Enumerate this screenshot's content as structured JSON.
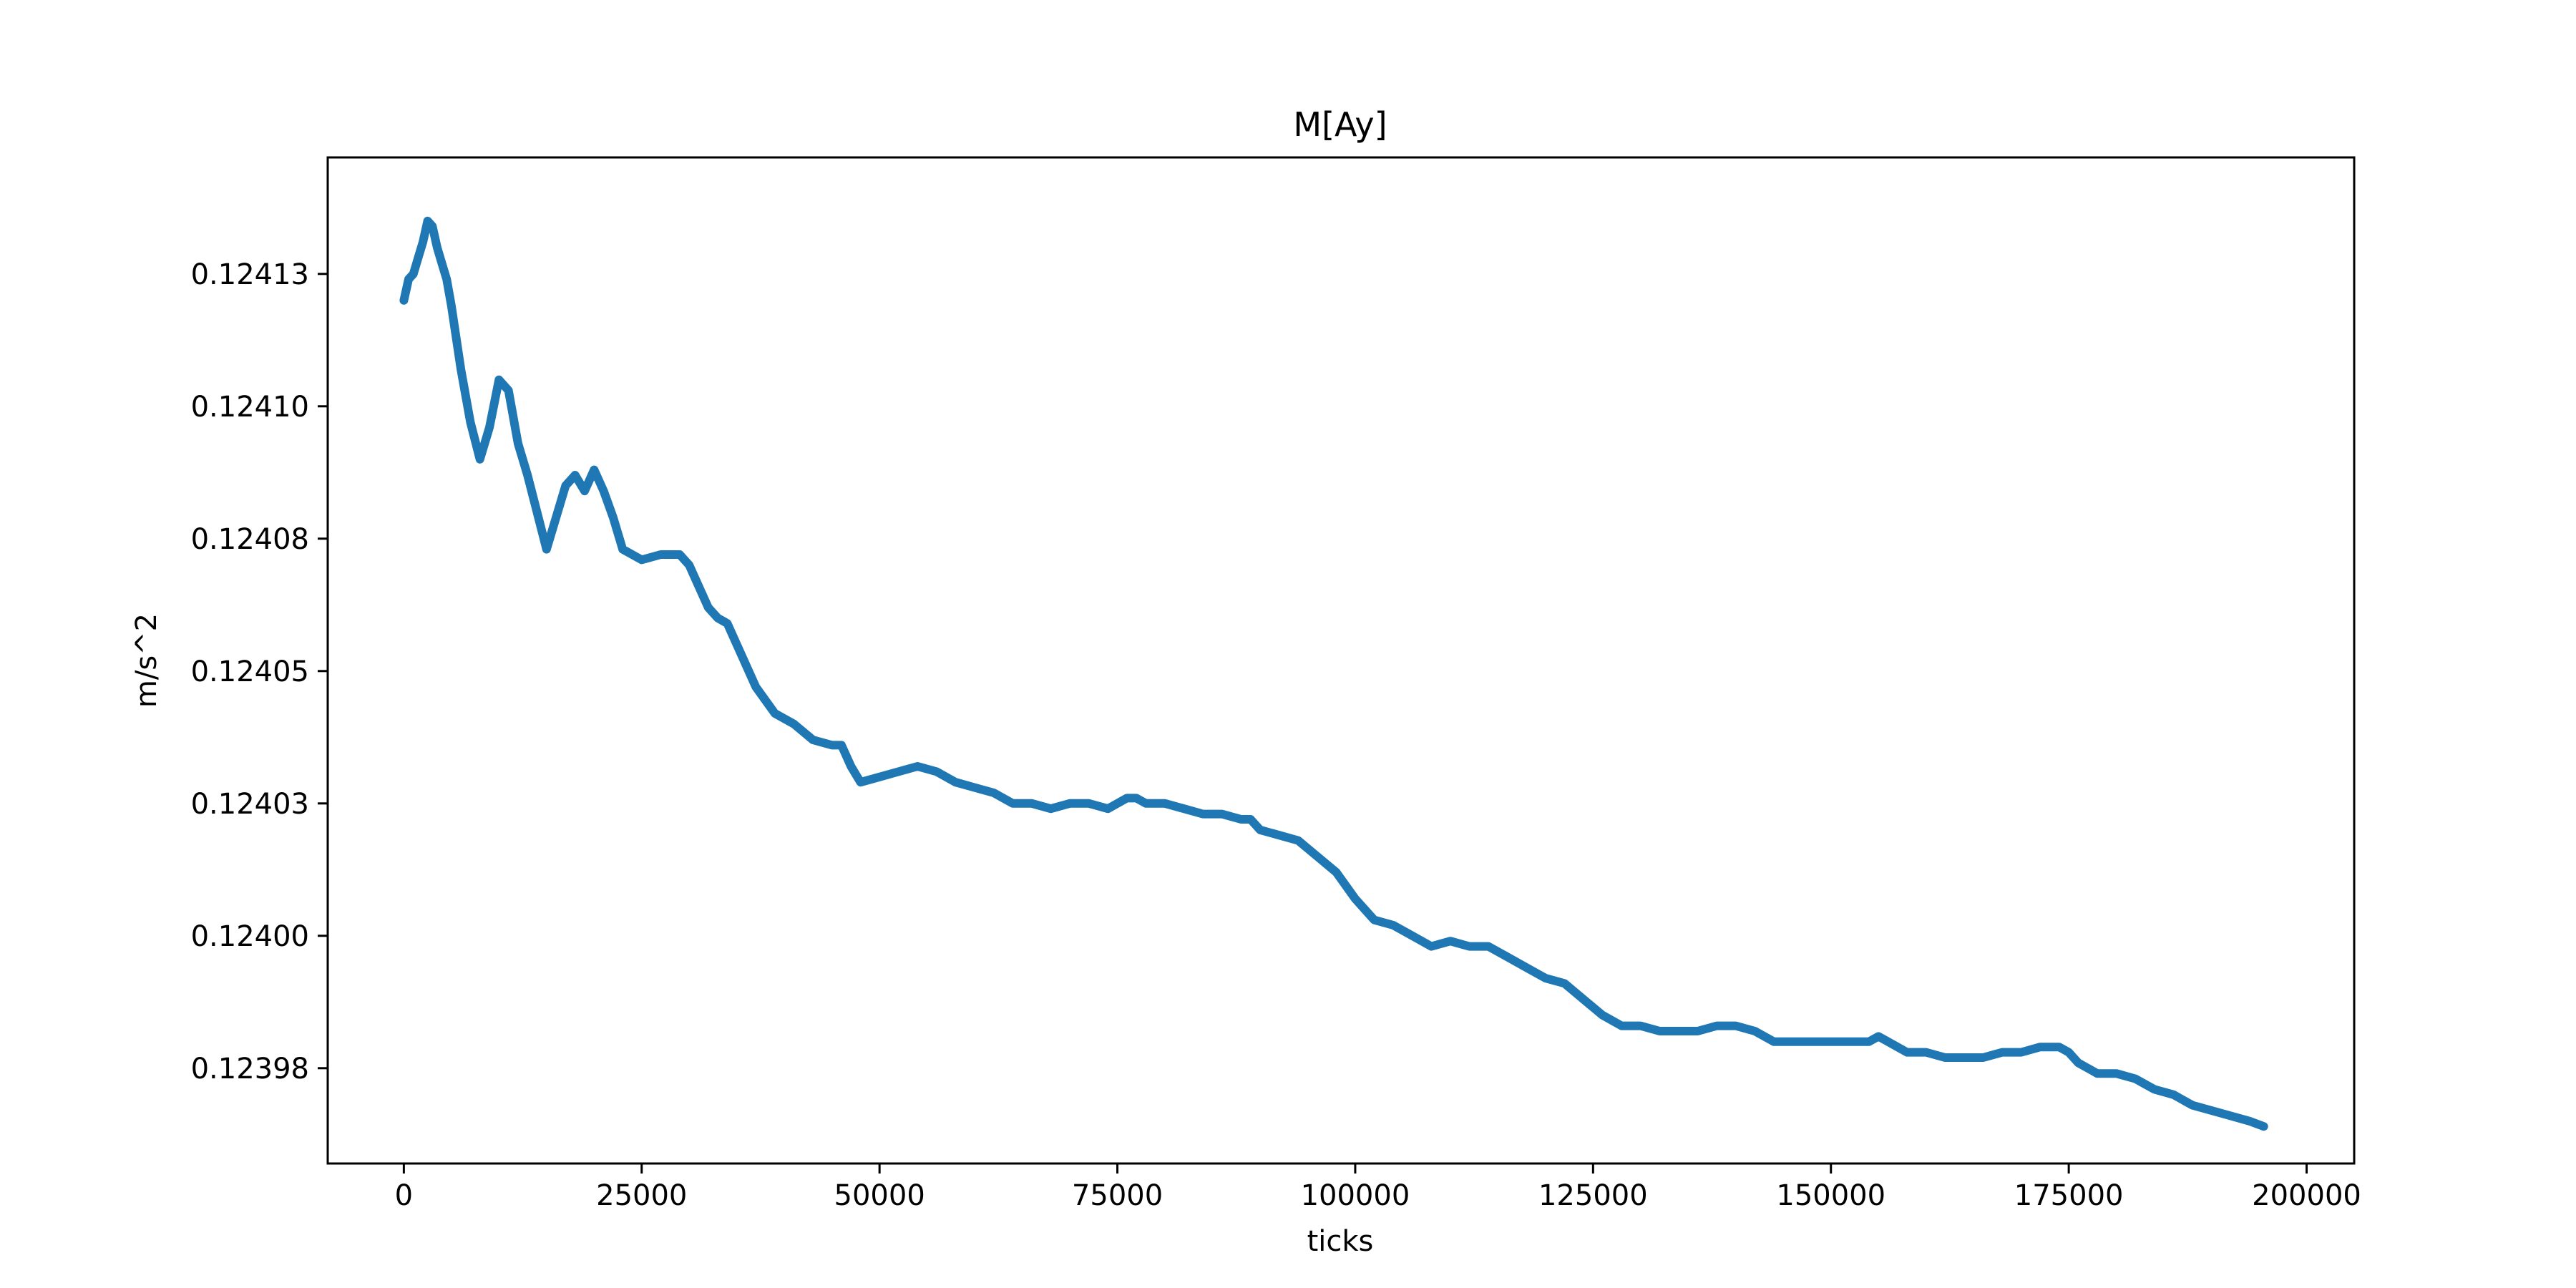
{
  "chart_data": {
    "type": "line",
    "title": "M[Ay]",
    "xlabel": "ticks",
    "ylabel": "m/s^2",
    "xlim": [
      -8000,
      205000
    ],
    "ylim": [
      0.123962,
      0.124152
    ],
    "x_ticks": [
      0,
      25000,
      50000,
      75000,
      100000,
      125000,
      150000,
      175000,
      200000
    ],
    "x_tick_labels": [
      "0",
      "25000",
      "50000",
      "75000",
      "100000",
      "125000",
      "150000",
      "175000",
      "200000"
    ],
    "y_ticks": [
      0.12398,
      0.124005,
      0.12403,
      0.124055,
      0.12408,
      0.124105,
      0.12413
    ],
    "y_tick_labels": [
      "0.12398",
      "0.12400",
      "0.12403",
      "0.12405",
      "0.12408",
      "0.12410",
      "0.12413"
    ],
    "grid": false,
    "line_color": "#1f77b4",
    "series": [
      {
        "x": [
          0,
          500,
          1000,
          1500,
          2000,
          2500,
          3000,
          3500,
          4000,
          4500,
          5000,
          6000,
          7000,
          8000,
          9000,
          10000,
          11000,
          12000,
          13000,
          14000,
          15000,
          16000,
          17000,
          18000,
          19000,
          20000,
          21000,
          22000,
          23000,
          24000,
          25000,
          27000,
          29000,
          30000,
          31000,
          32000,
          33000,
          34000,
          35000,
          37000,
          39000,
          41000,
          43000,
          45000,
          46000,
          47000,
          48000,
          50000,
          52000,
          54000,
          56000,
          58000,
          60000,
          62000,
          64000,
          66000,
          68000,
          70000,
          72000,
          74000,
          76000,
          77000,
          78000,
          80000,
          82000,
          84000,
          86000,
          88000,
          89000,
          90000,
          92000,
          94000,
          96000,
          98000,
          100000,
          102000,
          104000,
          106000,
          108000,
          110000,
          112000,
          114000,
          116000,
          118000,
          120000,
          122000,
          124000,
          126000,
          128000,
          130000,
          132000,
          134000,
          136000,
          138000,
          140000,
          142000,
          144000,
          146000,
          148000,
          150000,
          152000,
          154000,
          155000,
          156000,
          158000,
          160000,
          162000,
          164000,
          166000,
          168000,
          170000,
          172000,
          174000,
          175000,
          176000,
          178000,
          180000,
          182000,
          184000,
          186000,
          188000,
          190000,
          192000,
          194000,
          195500
        ],
        "y": [
          0.124125,
          0.124129,
          0.12413,
          0.124133,
          0.124136,
          0.12414,
          0.124139,
          0.124135,
          0.124132,
          0.124129,
          0.124124,
          0.124112,
          0.124102,
          0.124095,
          0.124101,
          0.12411,
          0.124108,
          0.124098,
          0.124092,
          0.124085,
          0.124078,
          0.124084,
          0.12409,
          0.124092,
          0.124089,
          0.124093,
          0.124089,
          0.124084,
          0.124078,
          0.124077,
          0.124076,
          0.124077,
          0.124077,
          0.124075,
          0.124071,
          0.124067,
          0.124065,
          0.124064,
          0.12406,
          0.124052,
          0.124047,
          0.124045,
          0.124042,
          0.124041,
          0.124041,
          0.124037,
          0.124034,
          0.124035,
          0.124036,
          0.124037,
          0.124036,
          0.124034,
          0.124033,
          0.124032,
          0.12403,
          0.12403,
          0.124029,
          0.12403,
          0.12403,
          0.124029,
          0.124031,
          0.124031,
          0.12403,
          0.12403,
          0.124029,
          0.124028,
          0.124028,
          0.124027,
          0.124027,
          0.124025,
          0.124024,
          0.124023,
          0.12402,
          0.124017,
          0.124012,
          0.124008,
          0.124007,
          0.124005,
          0.124003,
          0.124004,
          0.124003,
          0.124003,
          0.124001,
          0.123999,
          0.123997,
          0.123996,
          0.123993,
          0.12399,
          0.123988,
          0.123988,
          0.123987,
          0.123987,
          0.123987,
          0.123988,
          0.123988,
          0.123987,
          0.123985,
          0.123985,
          0.123985,
          0.123985,
          0.123985,
          0.123985,
          0.123986,
          0.123985,
          0.123983,
          0.123983,
          0.123982,
          0.123982,
          0.123982,
          0.123983,
          0.123983,
          0.123984,
          0.123984,
          0.123983,
          0.123981,
          0.123979,
          0.123979,
          0.123978,
          0.123976,
          0.123975,
          0.123973,
          0.123972,
          0.123971,
          0.12397,
          0.123969
        ]
      }
    ]
  }
}
